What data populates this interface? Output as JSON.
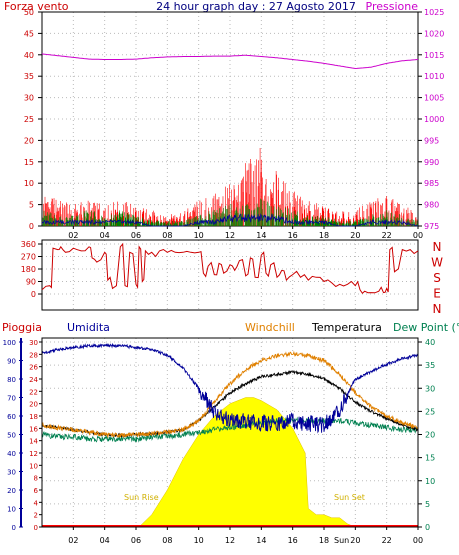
{
  "colors": {
    "wind": "#cc0000",
    "gust": "#ff0000",
    "wind_green": "#008000",
    "pressure": "#cc00cc",
    "dir": "#cc0000",
    "humidity": "#000099",
    "windchill": "#e08000",
    "temperature": "#000000",
    "dewpoint": "#008050",
    "sun": "#ffff00",
    "rain": "#ff0000",
    "axis": "#000000"
  },
  "chart_data": [
    {
      "type": "line",
      "title": "24 hour graph day : 27 Agosto 2017",
      "left_axis_label": "Forza vento",
      "right_axis_label": "Pressione",
      "left_ticks": [
        "0",
        "5",
        "10",
        "15",
        "20",
        "25",
        "30",
        "35",
        "40",
        "45",
        "50"
      ],
      "right_ticks": [
        "975",
        "980",
        "985",
        "990",
        "995",
        "1000",
        "1005",
        "1010",
        "1015",
        "1020",
        "1025"
      ],
      "x_ticks": [
        "02",
        "04",
        "06",
        "08",
        "10",
        "12",
        "14",
        "16",
        "18",
        "20",
        "22",
        "00"
      ],
      "ylim_left": [
        0,
        50
      ],
      "ylim_right": [
        975,
        1025
      ],
      "series": [
        {
          "axis": "right",
          "hours": [
            0,
            1,
            2,
            3,
            4,
            5,
            6,
            7,
            8,
            9,
            10,
            11,
            12,
            13,
            14,
            15,
            16,
            17,
            18,
            19,
            20,
            21,
            22,
            23,
            24
          ],
          "values": [
            1015.2,
            1014.8,
            1014.4,
            1014.0,
            1013.9,
            1013.9,
            1014.0,
            1014.3,
            1014.5,
            1014.6,
            1014.6,
            1014.7,
            1014.7,
            1014.9,
            1014.6,
            1014.3,
            1013.9,
            1013.5,
            1013.0,
            1012.4,
            1011.8,
            1012.1,
            1013.0,
            1013.6,
            1013.9
          ]
        },
        {
          "axis": "left",
          "hours": [
            0,
            1,
            2,
            3,
            4,
            5,
            6,
            7,
            8,
            9,
            10,
            11,
            12,
            13,
            14,
            15,
            16,
            17,
            18,
            19,
            20,
            21,
            22,
            23,
            24
          ],
          "values": [
            7,
            5,
            4,
            5,
            4,
            5,
            4,
            3,
            2,
            3,
            5,
            6,
            8,
            12,
            15,
            10,
            7,
            5,
            4,
            3,
            3,
            5,
            6,
            4,
            3
          ]
        },
        {
          "axis": "left",
          "hours": [
            0,
            1,
            2,
            3,
            4,
            5,
            6,
            7,
            8,
            9,
            10,
            11,
            12,
            13,
            14,
            15,
            16,
            17,
            18,
            19,
            20,
            21,
            22,
            23,
            24
          ],
          "values": [
            3,
            2,
            2,
            3,
            2,
            3,
            2,
            1,
            1,
            1,
            2,
            3,
            4,
            4,
            5,
            4,
            3,
            2,
            2,
            1,
            1,
            2,
            3,
            2,
            1
          ]
        },
        {
          "axis": "left",
          "hours": [
            0,
            1,
            2,
            3,
            4,
            5,
            6,
            7,
            8,
            9,
            10,
            11,
            12,
            13,
            14,
            15,
            16,
            17,
            18,
            19,
            20,
            21,
            22,
            23,
            24
          ],
          "values": [
            1,
            1,
            1,
            1,
            1,
            1,
            1,
            0,
            0,
            0,
            1,
            1,
            2,
            2,
            2,
            2,
            1,
            1,
            1,
            0,
            0,
            1,
            1,
            1,
            0
          ]
        }
      ]
    },
    {
      "type": "line",
      "left_ticks": [
        "360",
        "270",
        "180",
        "90",
        "0"
      ],
      "right_ticks": [
        "N",
        "W",
        "S",
        "E",
        "N"
      ],
      "ylim": [
        0,
        360
      ],
      "series": [
        {
          "hours": [
            0,
            0.5,
            0.7,
            1.0,
            1.2,
            1.5,
            2.0,
            2.5,
            3.0,
            3.2,
            3.5,
            4.0,
            4.2,
            4.5,
            5.0,
            5.3,
            5.6,
            6.0,
            6.2,
            6.4,
            6.6,
            7.0,
            7.5,
            8.0,
            8.5,
            9.0,
            9.5,
            10.0,
            10.3,
            10.6,
            11.0,
            11.3,
            11.6,
            12.0,
            12.3,
            12.6,
            13.0,
            13.3,
            13.6,
            14.0,
            14.3,
            14.6,
            15.0,
            15.3,
            15.6,
            16.0,
            16.5,
            17.0,
            17.5,
            18.0,
            18.5,
            19.0,
            19.5,
            20.0,
            20.3,
            20.6,
            21.0,
            21.5,
            21.8,
            22.0,
            22.2,
            22.5,
            23.0,
            23.5,
            24.0
          ],
          "values": [
            30,
            60,
            330,
            320,
            340,
            300,
            330,
            310,
            340,
            260,
            230,
            300,
            100,
            40,
            340,
            60,
            300,
            70,
            340,
            90,
            310,
            300,
            310,
            300,
            300,
            300,
            300,
            300,
            150,
            200,
            140,
            220,
            150,
            210,
            170,
            240,
            130,
            260,
            120,
            280,
            150,
            210,
            120,
            170,
            100,
            140,
            120,
            100,
            120,
            90,
            80,
            70,
            70,
            60,
            30,
            20,
            10,
            20,
            10,
            40,
            320,
            160,
            320,
            320,
            310
          ]
        }
      ]
    },
    {
      "type": "line",
      "legend": [
        "Pioggia",
        "Umidita",
        "Windchill",
        "Temperatura",
        "Dew Point (°C"
      ],
      "humidity_ticks": [
        "0",
        "10",
        "20",
        "30",
        "40",
        "50",
        "60",
        "70",
        "80",
        "90",
        "100"
      ],
      "rain_ticks": [
        "0",
        "2",
        "4",
        "6",
        "8",
        "10",
        "12",
        "14",
        "16",
        "18",
        "20",
        "22",
        "24",
        "26",
        "28",
        "30"
      ],
      "temp_ticks": [
        "0",
        "5",
        "10",
        "15",
        "20",
        "25",
        "30",
        "35",
        "40"
      ],
      "x_ticks": [
        "02",
        "04",
        "06",
        "08",
        "10",
        "12",
        "14",
        "16",
        "18",
        "20",
        "22",
        "00"
      ],
      "annotations": [
        "Sun Rise",
        "Sun Set",
        "Sun"
      ],
      "series": [
        {
          "name": "Umidita",
          "axis": "humidity",
          "hours": [
            0,
            1,
            2,
            3,
            4,
            5,
            6,
            7,
            8,
            9,
            10,
            10.5,
            11,
            12,
            13,
            14,
            15,
            16,
            17,
            18,
            19,
            19.5,
            20,
            20.5,
            21,
            22,
            23,
            24
          ],
          "values": [
            94,
            96,
            97,
            98,
            98,
            98,
            97,
            96,
            93,
            86,
            75,
            68,
            62,
            58,
            57,
            56,
            56,
            57,
            56,
            55,
            63,
            72,
            80,
            82,
            84,
            88,
            91,
            93
          ]
        },
        {
          "name": "Windchill",
          "axis": "temp",
          "hours": [
            0,
            1,
            2,
            3,
            4,
            5,
            6,
            7,
            8,
            9,
            10,
            11,
            12,
            13,
            14,
            15,
            16,
            17,
            18,
            19,
            20,
            21,
            22,
            23,
            24
          ],
          "values": [
            22,
            21.5,
            21,
            20.5,
            20,
            19.8,
            20,
            20.2,
            20.5,
            21,
            23,
            27,
            31,
            34,
            36,
            37,
            37.5,
            37,
            36,
            33,
            29,
            26,
            24,
            22.5,
            21.5
          ]
        },
        {
          "name": "Temperatura",
          "axis": "temp",
          "hours": [
            0,
            1,
            2,
            3,
            4,
            5,
            6,
            7,
            8,
            9,
            10,
            11,
            12,
            13,
            14,
            15,
            16,
            17,
            18,
            19,
            20,
            21,
            22,
            23,
            24
          ],
          "values": [
            22,
            21.5,
            21,
            20.5,
            20,
            19.8,
            20,
            20.2,
            20.5,
            21,
            23,
            26,
            29,
            31,
            32.5,
            33,
            33.5,
            33,
            32,
            30,
            27,
            25,
            23.5,
            22,
            21
          ]
        },
        {
          "name": "Dew Point (°C",
          "axis": "temp",
          "hours": [
            0,
            1,
            2,
            3,
            4,
            5,
            6,
            7,
            8,
            9,
            10,
            11,
            12,
            13,
            14,
            15,
            16,
            17,
            18,
            19,
            20,
            21,
            22,
            23,
            24
          ],
          "values": [
            20,
            19.5,
            19.5,
            19,
            19,
            19,
            19,
            19.5,
            19.5,
            20,
            20.5,
            21,
            21.5,
            22,
            22.5,
            23,
            23,
            23,
            23,
            23,
            22.5,
            22,
            21.5,
            21,
            21
          ]
        },
        {
          "name": "Sun",
          "axis": "rain",
          "hours": [
            6.2,
            7,
            8,
            9,
            10,
            11,
            12,
            13,
            13.5,
            14,
            15,
            16,
            16.8,
            17,
            17.5,
            18,
            18.5,
            19,
            19.5,
            20
          ],
          "values": [
            0,
            2,
            6,
            11,
            15,
            18,
            20,
            21,
            21,
            20.5,
            19,
            16,
            12,
            3,
            2,
            2,
            1.5,
            1.5,
            0.5,
            0
          ]
        }
      ]
    }
  ]
}
